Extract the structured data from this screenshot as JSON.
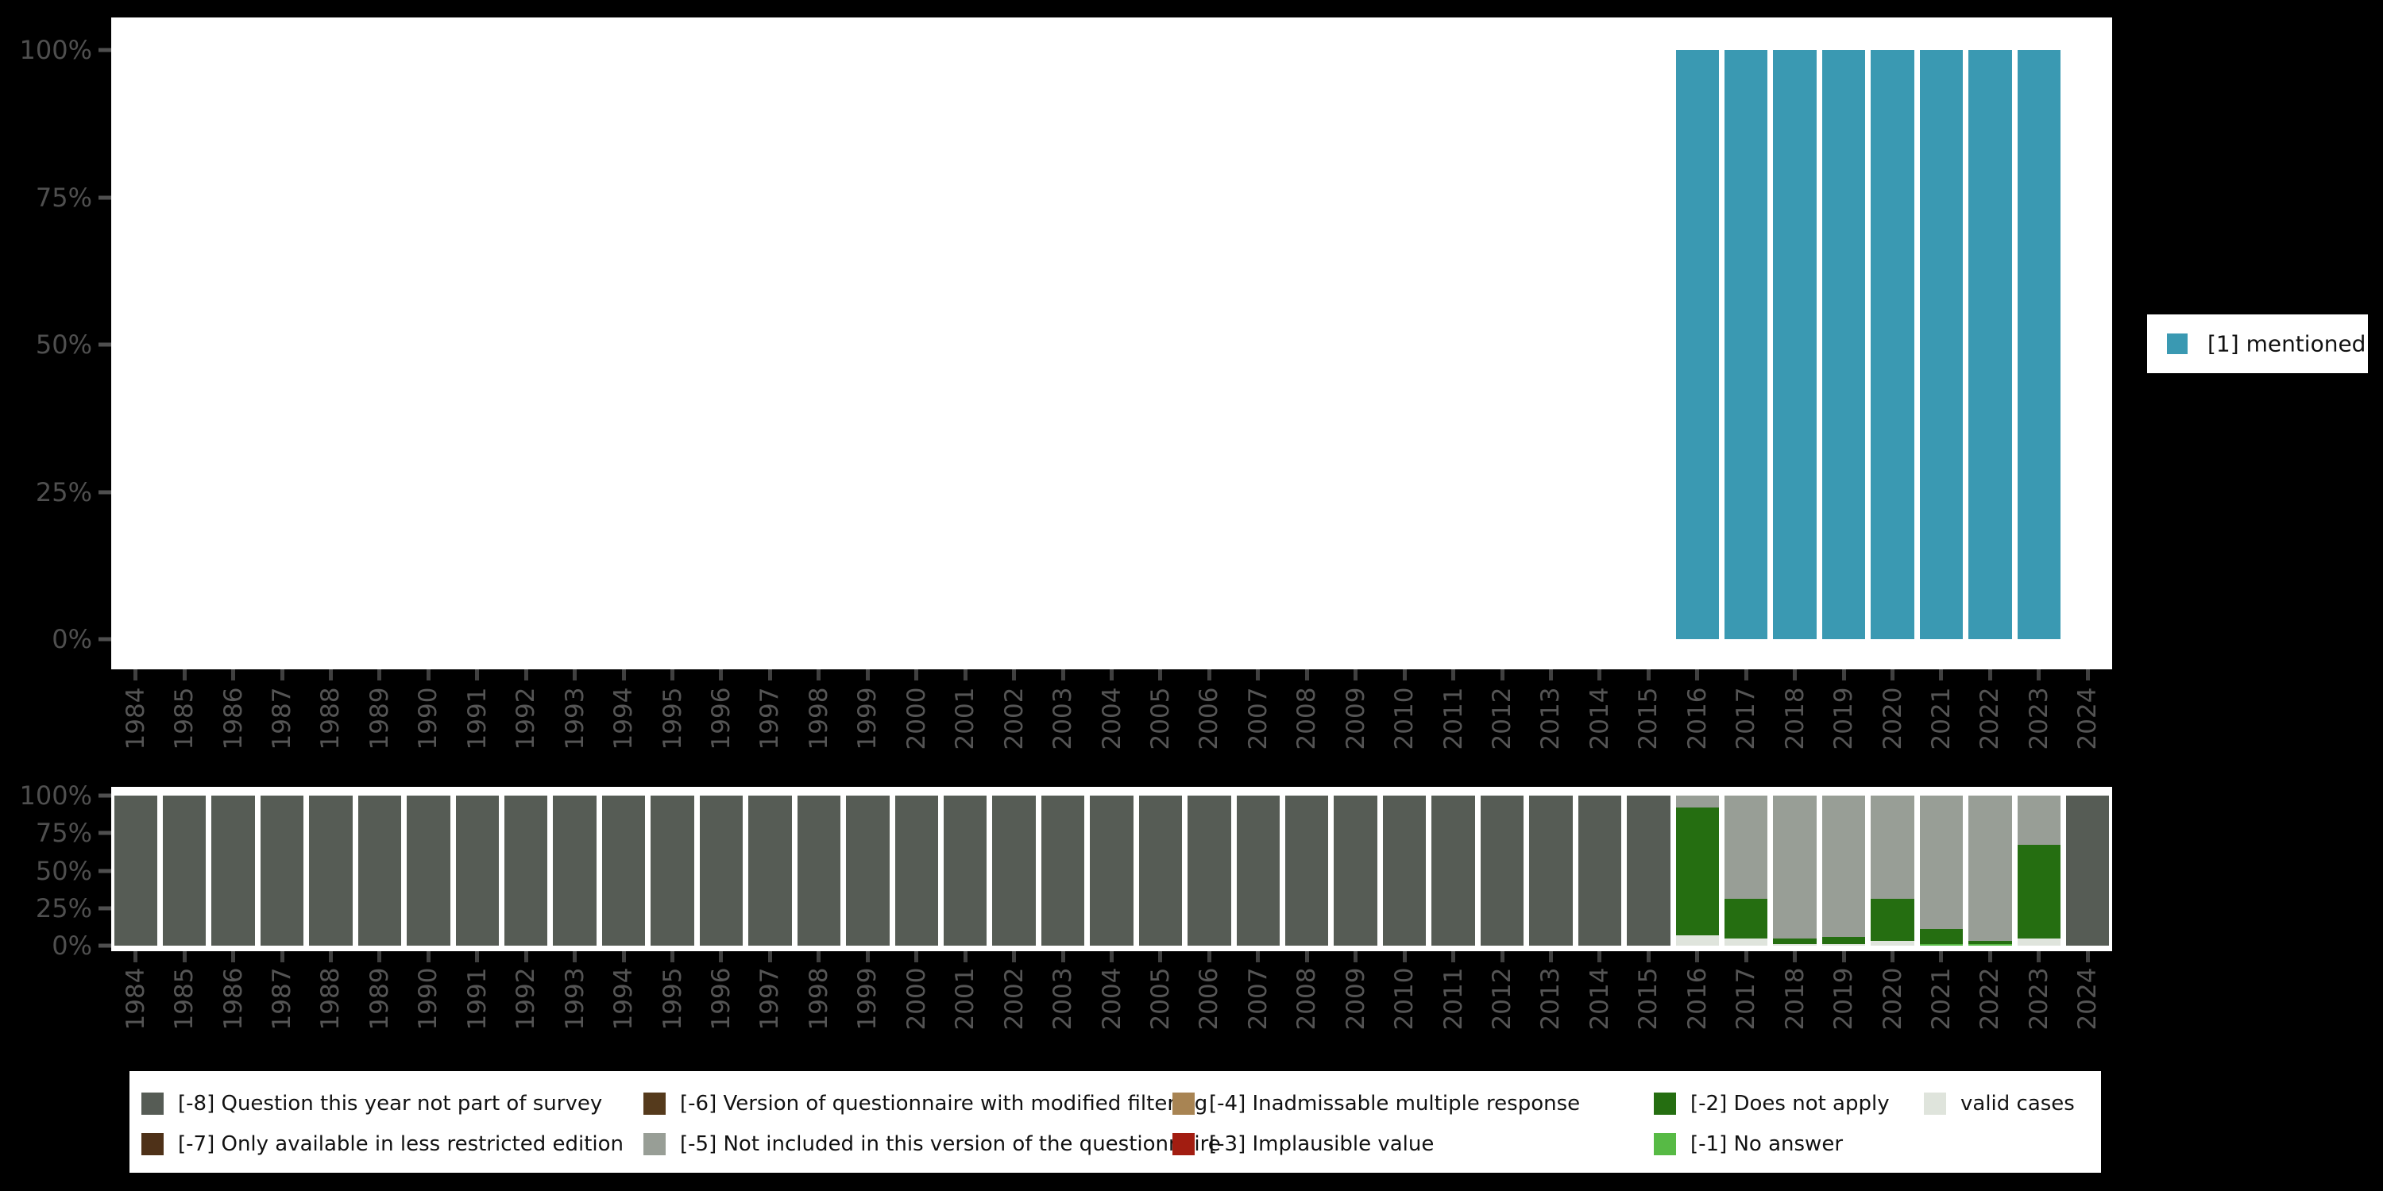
{
  "colors": {
    "canvas_bg": "#000000",
    "panel_bg": "#ffffff",
    "axis_text": "#4f4f4f",
    "tick_mark": "#404040",
    "mentioned": "#3a99b2",
    "m8": "#565c55",
    "m7": "#4e3118",
    "m6": "#553a1c",
    "m5": "#989e96",
    "m4": "#a88453",
    "m3": "#a21d11",
    "m2": "#256e11",
    "m1": "#57ba45",
    "valid": "#dfe4dc"
  },
  "right_legend": {
    "items": [
      {
        "label": "[1] mentioned",
        "color_key": "mentioned"
      }
    ]
  },
  "bottom_legend": {
    "items": [
      {
        "label": "[-8] Question this year not part of survey",
        "color_key": "m8",
        "row": 0,
        "col": 0
      },
      {
        "label": "[-7] Only available in less restricted edition",
        "color_key": "m7",
        "row": 1,
        "col": 0
      },
      {
        "label": "[-6] Version of questionnaire with modified filtering",
        "color_key": "m6",
        "row": 0,
        "col": 1
      },
      {
        "label": "[-5] Not included in this version of the questionnaire",
        "color_key": "m5",
        "row": 1,
        "col": 1
      },
      {
        "label": "[-4] Inadmissable multiple response",
        "color_key": "m4",
        "row": 0,
        "col": 2
      },
      {
        "label": "[-3] Implausible value",
        "color_key": "m3",
        "row": 1,
        "col": 2
      },
      {
        "label": "[-2] Does not apply",
        "color_key": "m2",
        "row": 0,
        "col": 3
      },
      {
        "label": "[-1] No answer",
        "color_key": "m1",
        "row": 1,
        "col": 3
      },
      {
        "label": "valid cases",
        "color_key": "valid",
        "row": 0,
        "col": 4
      }
    ]
  },
  "chart_data": [
    {
      "id": "top-chart",
      "type": "bar",
      "stacked": false,
      "title": "",
      "xlabel": "",
      "ylabel": "",
      "ylim": [
        0,
        100
      ],
      "grid": false,
      "legend_position": "right",
      "y_tick_labels": [
        "0%",
        "25%",
        "50%",
        "75%",
        "100%"
      ],
      "y_ticks": [
        0,
        25,
        50,
        75,
        100
      ],
      "categories": [
        "1984",
        "1985",
        "1986",
        "1987",
        "1988",
        "1989",
        "1990",
        "1991",
        "1992",
        "1993",
        "1994",
        "1995",
        "1996",
        "1997",
        "1998",
        "1999",
        "2000",
        "2001",
        "2002",
        "2003",
        "2004",
        "2005",
        "2006",
        "2007",
        "2008",
        "2009",
        "2010",
        "2011",
        "2012",
        "2013",
        "2014",
        "2015",
        "2016",
        "2017",
        "2018",
        "2019",
        "2020",
        "2021",
        "2022",
        "2023",
        "2024"
      ],
      "series": [
        {
          "name": "[1] mentioned",
          "color_key": "mentioned",
          "values": [
            0,
            0,
            0,
            0,
            0,
            0,
            0,
            0,
            0,
            0,
            0,
            0,
            0,
            0,
            0,
            0,
            0,
            0,
            0,
            0,
            0,
            0,
            0,
            0,
            0,
            0,
            0,
            0,
            0,
            0,
            0,
            0,
            100,
            100,
            100,
            100,
            100,
            100,
            100,
            100,
            0
          ]
        }
      ]
    },
    {
      "id": "bottom-chart",
      "type": "bar",
      "stacked": true,
      "title": "",
      "xlabel": "",
      "ylabel": "",
      "ylim": [
        0,
        100
      ],
      "grid": false,
      "legend_position": "bottom",
      "y_tick_labels": [
        "0%",
        "25%",
        "50%",
        "75%",
        "100%"
      ],
      "y_ticks": [
        0,
        25,
        50,
        75,
        100
      ],
      "categories": [
        "1984",
        "1985",
        "1986",
        "1987",
        "1988",
        "1989",
        "1990",
        "1991",
        "1992",
        "1993",
        "1994",
        "1995",
        "1996",
        "1997",
        "1998",
        "1999",
        "2000",
        "2001",
        "2002",
        "2003",
        "2004",
        "2005",
        "2006",
        "2007",
        "2008",
        "2009",
        "2010",
        "2011",
        "2012",
        "2013",
        "2014",
        "2015",
        "2016",
        "2017",
        "2018",
        "2019",
        "2020",
        "2021",
        "2022",
        "2023",
        "2024"
      ],
      "series": [
        {
          "name": "valid cases",
          "color_key": "valid",
          "values": [
            0,
            0,
            0,
            0,
            0,
            0,
            0,
            0,
            0,
            0,
            0,
            0,
            0,
            0,
            0,
            0,
            0,
            0,
            0,
            0,
            0,
            0,
            0,
            0,
            0,
            0,
            0,
            0,
            0,
            0,
            0,
            0,
            7,
            5,
            1,
            1,
            3,
            0,
            0,
            5,
            0
          ]
        },
        {
          "name": "[-1] No answer",
          "color_key": "m1",
          "values": [
            0,
            0,
            0,
            0,
            0,
            0,
            0,
            0,
            0,
            0,
            0,
            0,
            0,
            0,
            0,
            0,
            0,
            0,
            0,
            0,
            0,
            0,
            0,
            0,
            0,
            0,
            0,
            0,
            0,
            0,
            0,
            0,
            0,
            0,
            0,
            0,
            0,
            1,
            1,
            0,
            0
          ]
        },
        {
          "name": "[-2] Does not apply",
          "color_key": "m2",
          "values": [
            0,
            0,
            0,
            0,
            0,
            0,
            0,
            0,
            0,
            0,
            0,
            0,
            0,
            0,
            0,
            0,
            0,
            0,
            0,
            0,
            0,
            0,
            0,
            0,
            0,
            0,
            0,
            0,
            0,
            0,
            0,
            0,
            85,
            26,
            4,
            5,
            28,
            10,
            2,
            62,
            0
          ]
        },
        {
          "name": "[-5] Not included in this version of the questionnaire",
          "color_key": "m5",
          "values": [
            0,
            0,
            0,
            0,
            0,
            0,
            0,
            0,
            0,
            0,
            0,
            0,
            0,
            0,
            0,
            0,
            0,
            0,
            0,
            0,
            0,
            0,
            0,
            0,
            0,
            0,
            0,
            0,
            0,
            0,
            0,
            0,
            8,
            69,
            95,
            94,
            69,
            89,
            97,
            33,
            0
          ]
        },
        {
          "name": "[-8] Question this year not part of survey",
          "color_key": "m8",
          "values": [
            100,
            100,
            100,
            100,
            100,
            100,
            100,
            100,
            100,
            100,
            100,
            100,
            100,
            100,
            100,
            100,
            100,
            100,
            100,
            100,
            100,
            100,
            100,
            100,
            100,
            100,
            100,
            100,
            100,
            100,
            100,
            100,
            0,
            0,
            0,
            0,
            0,
            0,
            0,
            0,
            100
          ]
        }
      ]
    }
  ]
}
